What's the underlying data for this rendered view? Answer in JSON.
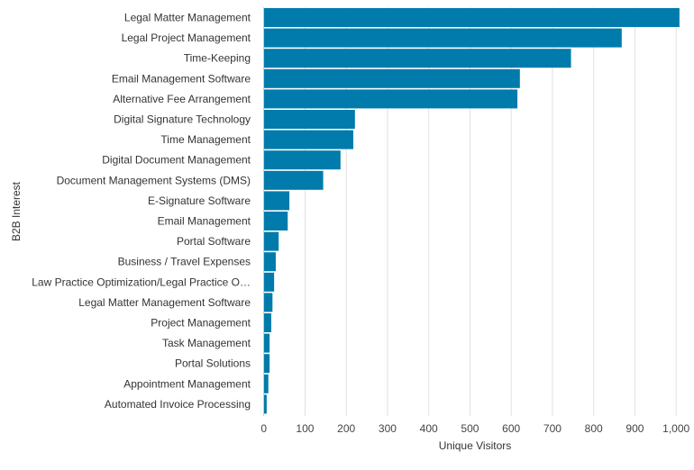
{
  "chart_data": {
    "type": "bar",
    "orientation": "horizontal",
    "title": "",
    "xlabel": "Unique Visitors",
    "ylabel": "B2B Interest",
    "xlim": [
      0,
      1020
    ],
    "xticks": [
      0,
      100,
      200,
      300,
      400,
      500,
      600,
      700,
      800,
      900,
      1000
    ],
    "xtick_labels": [
      "0",
      "100",
      "200",
      "300",
      "400",
      "500",
      "600",
      "700",
      "800",
      "900",
      "1,000"
    ],
    "grid": true,
    "bar_color": "#007bab",
    "categories": [
      "Legal Matter Management",
      "Legal Project Management",
      "Time-Keeping",
      "Email Management Software",
      "Alternative Fee Arrangement",
      "Digital Signature Technology",
      "Time Management",
      "Digital Document Management",
      "Document Management Systems (DMS)",
      "E-Signature Software",
      "Email Management",
      "Portal Software",
      "Business / Travel Expenses",
      "Law Practice Optimization/Legal Practice O…",
      "Legal Matter Management Software",
      "Project Management",
      "Task Management",
      "Portal Solutions",
      "Appointment Management",
      "Automated Invoice Processing"
    ],
    "values": [
      1008,
      868,
      745,
      621,
      615,
      221,
      217,
      186,
      144,
      62,
      58,
      36,
      29,
      25,
      21,
      18,
      14,
      14,
      11,
      7
    ]
  }
}
